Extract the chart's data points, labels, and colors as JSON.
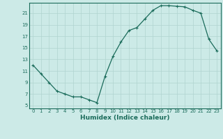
{
  "x": [
    0,
    1,
    2,
    3,
    4,
    5,
    6,
    7,
    8,
    9,
    10,
    11,
    12,
    13,
    14,
    15,
    16,
    17,
    18,
    19,
    20,
    21,
    22,
    23
  ],
  "y": [
    12,
    10.5,
    9,
    7.5,
    7,
    6.5,
    6.5,
    6,
    5.5,
    10,
    13.5,
    16,
    18,
    18.5,
    20,
    21.5,
    22.3,
    22.3,
    22.2,
    22.1,
    21.5,
    21,
    16.5,
    14.5
  ],
  "line_color": "#1a6b5a",
  "marker": "+",
  "marker_size": 3,
  "marker_linewidth": 0.8,
  "line_width": 0.9,
  "background_color": "#cceae7",
  "grid_color": "#b0d4cf",
  "xlabel": "Humidex (Indice chaleur)",
  "xlim": [
    -0.5,
    23.5
  ],
  "ylim": [
    4.5,
    22.8
  ],
  "yticks": [
    5,
    7,
    9,
    11,
    13,
    15,
    17,
    19,
    21
  ],
  "xticks": [
    0,
    1,
    2,
    3,
    4,
    5,
    6,
    7,
    8,
    9,
    10,
    11,
    12,
    13,
    14,
    15,
    16,
    17,
    18,
    19,
    20,
    21,
    22,
    23
  ],
  "tick_fontsize": 5,
  "xlabel_fontsize": 6.5
}
